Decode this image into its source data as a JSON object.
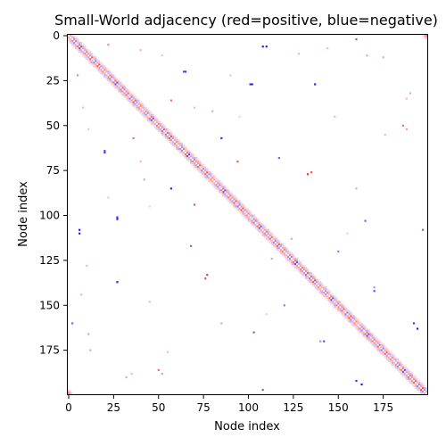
{
  "chart_data": {
    "type": "heatmap",
    "title": "Small-World adjacency (red=positive, blue=negative)",
    "xlabel": "Node index",
    "ylabel": "Node index",
    "n_nodes": 200,
    "xlim": [
      0,
      200
    ],
    "ylim": [
      200,
      0
    ],
    "xticks": [
      0,
      25,
      50,
      75,
      100,
      125,
      150,
      175
    ],
    "yticks": [
      0,
      25,
      50,
      75,
      100,
      125,
      150,
      175
    ],
    "colormap": "bwr",
    "value_range": [
      -1,
      1
    ],
    "positive_color": "#ff0000",
    "negative_color": "#0000ff",
    "zero_color": "#ffffff",
    "grid": false,
    "structure": "ring lattice with neighbor band around the diagonal plus sparse long-range shortcuts",
    "band_entries": [
      {
        "offset": 1,
        "values": [
          0.35,
          -0.25,
          0.5,
          -0.45,
          0.3,
          0.6,
          -0.7,
          0.4,
          -0.3,
          0.55,
          0.45,
          -0.35,
          0.65,
          0.3,
          -0.5,
          0.4,
          0.7,
          -0.4,
          0.35,
          0.5
        ]
      },
      {
        "offset": 2,
        "values": [
          0.2,
          0.3,
          -0.2,
          0.25,
          -0.3,
          0.2,
          0.35,
          -0.25,
          0.3,
          0.2,
          -0.2,
          0.25,
          0.3,
          -0.3,
          0.2,
          0.25
        ]
      },
      {
        "offset": 3,
        "values": [
          0.15,
          -0.15,
          0.2,
          0.1,
          -0.2,
          0.15,
          0.2,
          -0.1
        ]
      }
    ],
    "shortcuts": [
      {
        "row": 2,
        "col": 160,
        "value": -0.6
      },
      {
        "row": 6,
        "col": 110,
        "value": -0.9
      },
      {
        "row": 8,
        "col": 40,
        "value": 0.3
      },
      {
        "row": 12,
        "col": 175,
        "value": -0.3
      },
      {
        "row": 20,
        "col": 65,
        "value": -0.8
      },
      {
        "row": 22,
        "col": 5,
        "value": 0.5
      },
      {
        "row": 27,
        "col": 102,
        "value": -0.9
      },
      {
        "row": 27,
        "col": 137,
        "value": -0.8
      },
      {
        "row": 32,
        "col": 190,
        "value": -0.3
      },
      {
        "row": 40,
        "col": 70,
        "value": 0.3
      },
      {
        "row": 45,
        "col": 95,
        "value": 0.2
      },
      {
        "row": 52,
        "col": 11,
        "value": -0.2
      },
      {
        "row": 52,
        "col": 188,
        "value": 0.4
      },
      {
        "row": 57,
        "col": 36,
        "value": 0.6
      },
      {
        "row": 57,
        "col": 85,
        "value": -0.7
      },
      {
        "row": 64,
        "col": 20,
        "value": -0.7
      },
      {
        "row": 70,
        "col": 94,
        "value": 0.7
      },
      {
        "row": 76,
        "col": 135,
        "value": 0.7
      },
      {
        "row": 80,
        "col": 42,
        "value": -0.3
      },
      {
        "row": 85,
        "col": 57,
        "value": -0.8
      },
      {
        "row": 90,
        "col": 22,
        "value": -0.2
      },
      {
        "row": 101,
        "col": 27,
        "value": -0.8
      },
      {
        "row": 103,
        "col": 165,
        "value": -0.6
      },
      {
        "row": 108,
        "col": 6,
        "value": -0.9
      },
      {
        "row": 113,
        "col": 124,
        "value": -0.3
      },
      {
        "row": 117,
        "col": 68,
        "value": -0.6
      },
      {
        "row": 120,
        "col": 150,
        "value": -0.5
      },
      {
        "row": 128,
        "col": 10,
        "value": 0.3
      },
      {
        "row": 133,
        "col": 77,
        "value": 0.8
      },
      {
        "row": 137,
        "col": 27,
        "value": -0.8
      },
      {
        "row": 140,
        "col": 170,
        "value": -0.4
      },
      {
        "row": 144,
        "col": 7,
        "value": 0.3
      },
      {
        "row": 148,
        "col": 45,
        "value": 0.3
      },
      {
        "row": 155,
        "col": 110,
        "value": 0.2
      },
      {
        "row": 160,
        "col": 85,
        "value": -0.3
      },
      {
        "row": 163,
        "col": 194,
        "value": -0.9
      },
      {
        "row": 166,
        "col": 11,
        "value": 0.4
      },
      {
        "row": 170,
        "col": 142,
        "value": -0.7
      },
      {
        "row": 176,
        "col": 55,
        "value": 0.3
      },
      {
        "row": 186,
        "col": 50,
        "value": 0.6
      },
      {
        "row": 188,
        "col": 35,
        "value": 0.3
      },
      {
        "row": 192,
        "col": 160,
        "value": -0.8
      },
      {
        "row": 197,
        "col": 108,
        "value": -0.6
      }
    ]
  }
}
